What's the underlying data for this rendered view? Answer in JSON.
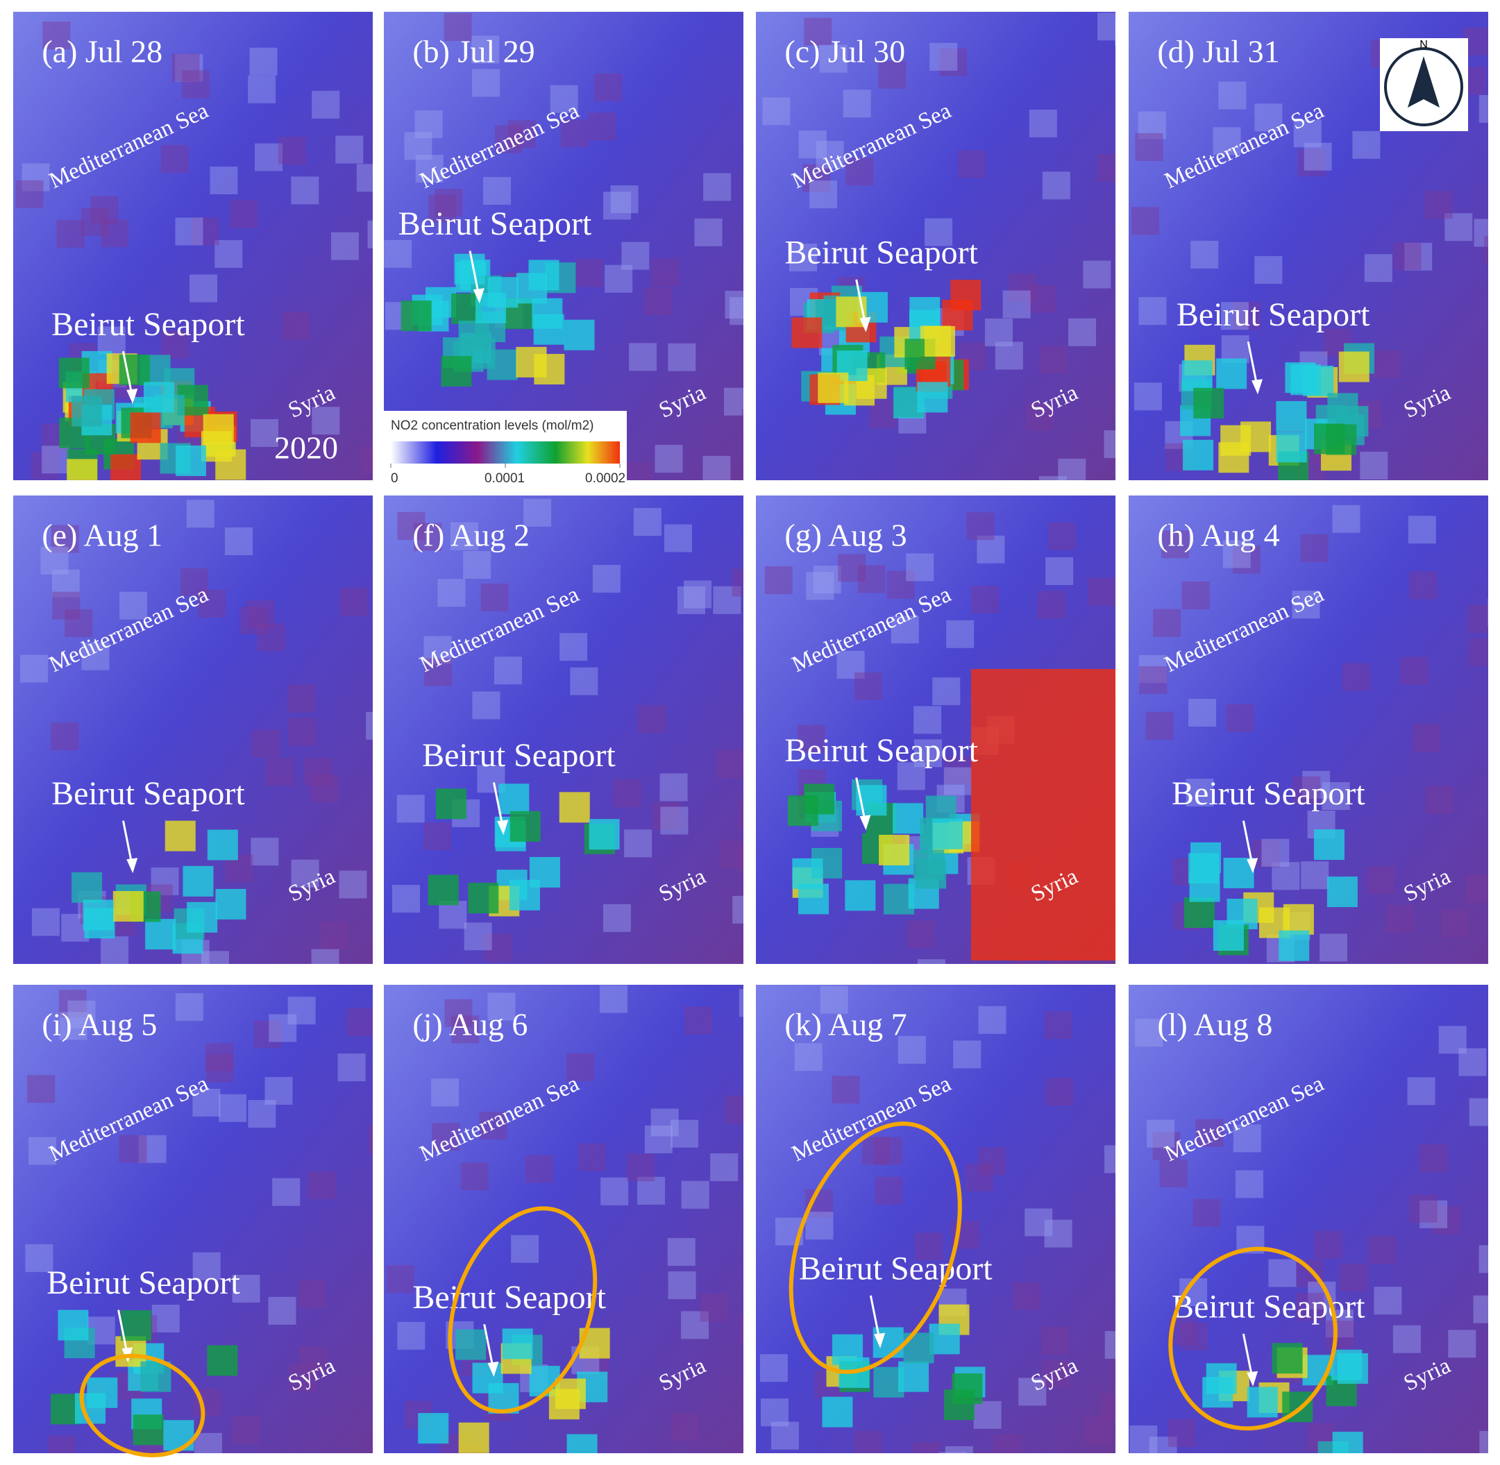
{
  "legend": {
    "title": "NO2 concentration levels (mol/m2)",
    "ticks": [
      0,
      0.0001,
      0.0002
    ]
  },
  "north": "N",
  "year": "2020",
  "panels": [
    {
      "label": "(a) Jul 28",
      "sea": "Mediterranean Sea",
      "port": "Beirut Seaport",
      "syria": "Syria"
    },
    {
      "label": "(b) Jul 29",
      "sea": "Mediterranean Sea",
      "port": "Beirut Seaport",
      "syria": "Syria"
    },
    {
      "label": "(c) Jul 30",
      "sea": "Mediterranean Sea",
      "port": "Beirut Seaport",
      "syria": "Syria"
    },
    {
      "label": "(d) Jul 31",
      "sea": "Mediterranean Sea",
      "port": "Beirut Seaport",
      "syria": "Syria"
    },
    {
      "label": "(e) Aug 1",
      "sea": "Mediterranean Sea",
      "port": "Beirut Seaport",
      "syria": "Syria"
    },
    {
      "label": "(f) Aug 2",
      "sea": "Mediterranean Sea",
      "port": "Beirut Seaport",
      "syria": "Syria"
    },
    {
      "label": "(g) Aug 3",
      "sea": "Mediterranean Sea",
      "port": "Beirut Seaport",
      "syria": "Syria"
    },
    {
      "label": "(h) Aug 4",
      "sea": "Mediterranean Sea",
      "port": "Beirut Seaport",
      "syria": "Syria"
    },
    {
      "label": "(i) Aug 5",
      "sea": "Mediterranean Sea",
      "port": "Beirut Seaport",
      "syria": "Syria"
    },
    {
      "label": "(j) Aug 6",
      "sea": "Mediterranean Sea",
      "port": "Beirut Seaport",
      "syria": "Syria"
    },
    {
      "label": "(k) Aug 7",
      "sea": "Mediterranean Sea",
      "port": "Beirut Seaport",
      "syria": "Syria"
    },
    {
      "label": "(l) Aug 8",
      "sea": "Mediterranean Sea",
      "port": "Beirut Seaport",
      "syria": "Syria"
    }
  ]
}
